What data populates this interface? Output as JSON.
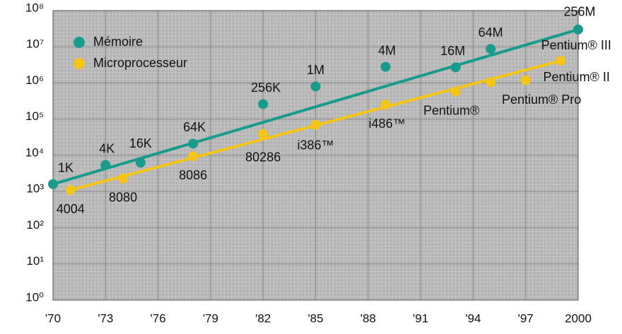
{
  "chart_data": {
    "type": "line",
    "log_scale": true,
    "grid": true,
    "legend": "upper left",
    "xlim": [
      1970,
      2000
    ],
    "xticks": [
      {
        "value": 1970,
        "label": "'70"
      },
      {
        "value": 1973,
        "label": "'73"
      },
      {
        "value": 1976,
        "label": "'76"
      },
      {
        "value": 1979,
        "label": "'79"
      },
      {
        "value": 1982,
        "label": "'82"
      },
      {
        "value": 1985,
        "label": "'85"
      },
      {
        "value": 1988,
        "label": "'88"
      },
      {
        "value": 1991,
        "label": "'91"
      },
      {
        "value": 1994,
        "label": "'94"
      },
      {
        "value": 1997,
        "label": "'97"
      },
      2000
    ],
    "ylim": [
      1,
      100000000
    ],
    "yticks": [
      {
        "value": 1,
        "label": "10⁰"
      },
      {
        "value": 10,
        "label": "10¹"
      },
      {
        "value": 100,
        "label": "10²"
      },
      {
        "value": 1000,
        "label": "10³"
      },
      {
        "value": 10000,
        "label": "10⁴"
      },
      {
        "value": 100000,
        "label": "10⁵"
      },
      {
        "value": 1000000,
        "label": "10⁶"
      },
      {
        "value": 10000000,
        "label": "10⁷"
      },
      {
        "value": 100000000,
        "label": "10⁸"
      }
    ],
    "series": [
      {
        "name": "Mémoire",
        "color": "#1a9a8c",
        "x": [
          1970,
          1973,
          1975,
          1978,
          1982,
          1985,
          1989,
          1993,
          1995,
          2000
        ],
        "values": [
          1600,
          5400,
          6300,
          21000,
          260000,
          800000,
          2800000,
          2700000,
          8700000,
          30000000
        ],
        "point_labels": [
          "1K",
          "4K",
          "16K",
          "64K",
          "256K",
          "1M",
          "4M",
          "16M",
          "64M",
          "256M"
        ]
      },
      {
        "name": "Microprocesseur",
        "color": "#f5c518",
        "x": [
          1971,
          1974,
          1978,
          1982,
          1985,
          1989,
          1993,
          1995,
          1997,
          1999
        ],
        "values": [
          1100,
          2300,
          9500,
          39000,
          70000,
          250000,
          580000,
          1050000,
          1200000,
          4100000
        ],
        "point_labels": [
          "4004",
          "8080",
          "8086",
          "80286",
          "i386™",
          "i486™",
          "Pentium®",
          "Pentium® Pro",
          "Pentium® II",
          "Pentium® III"
        ]
      }
    ]
  }
}
